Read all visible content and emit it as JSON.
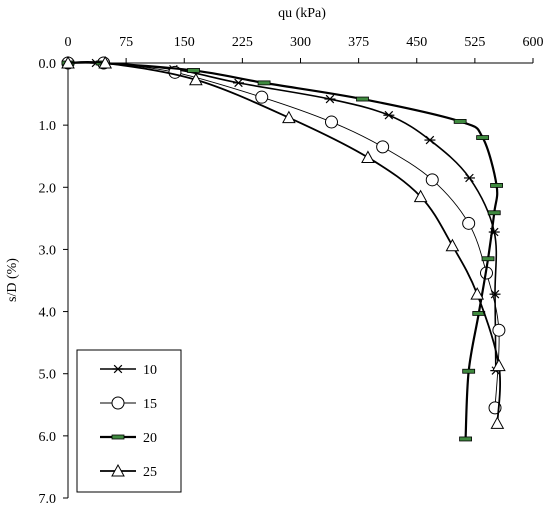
{
  "chart_data": {
    "type": "line",
    "title": "",
    "xlabel": "qu (kPa)",
    "ylabel": "s/D (%)",
    "x_axis_position": "top",
    "y_axis_reversed": true,
    "xlim": [
      0,
      600
    ],
    "ylim": [
      0.0,
      7.0
    ],
    "x_ticks": [
      0,
      75,
      150,
      225,
      300,
      375,
      450,
      525,
      600
    ],
    "y_ticks": [
      "0.0",
      "1.0",
      "2.0",
      "3.0",
      "4.0",
      "5.0",
      "6.0",
      "7.0"
    ],
    "grid": false,
    "legend_position": "bottom-left",
    "series": [
      {
        "name": "10",
        "marker": "asterisk",
        "color": "#000000",
        "points": [
          [
            0,
            0.0
          ],
          [
            36,
            0.0
          ],
          [
            136,
            0.1
          ],
          [
            220,
            0.32
          ],
          [
            338,
            0.58
          ],
          [
            414,
            0.84
          ],
          [
            467,
            1.24
          ],
          [
            518,
            1.85
          ],
          [
            550,
            2.72
          ],
          [
            551,
            3.72
          ],
          [
            552,
            4.95
          ]
        ]
      },
      {
        "name": "15",
        "marker": "circle",
        "color": "#000000",
        "points": [
          [
            0,
            0.0
          ],
          [
            46,
            0.0
          ],
          [
            138,
            0.15
          ],
          [
            250,
            0.55
          ],
          [
            340,
            0.95
          ],
          [
            406,
            1.35
          ],
          [
            470,
            1.88
          ],
          [
            517,
            2.58
          ],
          [
            540,
            3.38
          ],
          [
            556,
            4.3
          ],
          [
            551,
            5.55
          ]
        ]
      },
      {
        "name": "20",
        "marker": "dash",
        "color": "#000000",
        "points": [
          [
            0,
            0.0
          ],
          [
            44,
            0.0
          ],
          [
            162,
            0.12
          ],
          [
            253,
            0.32
          ],
          [
            380,
            0.58
          ],
          [
            506,
            0.94
          ],
          [
            535,
            1.2
          ],
          [
            553,
            1.97
          ],
          [
            550,
            2.41
          ],
          [
            542,
            3.15
          ],
          [
            530,
            4.03
          ],
          [
            517,
            4.96
          ],
          [
            513,
            6.05
          ]
        ]
      },
      {
        "name": "25",
        "marker": "triangle",
        "color": "#000000",
        "points": [
          [
            0,
            0.0
          ],
          [
            48,
            0.0
          ],
          [
            165,
            0.27
          ],
          [
            285,
            0.88
          ],
          [
            387,
            1.52
          ],
          [
            455,
            2.15
          ],
          [
            496,
            2.94
          ],
          [
            528,
            3.72
          ],
          [
            556,
            4.87
          ],
          [
            554,
            5.8
          ]
        ]
      }
    ]
  }
}
